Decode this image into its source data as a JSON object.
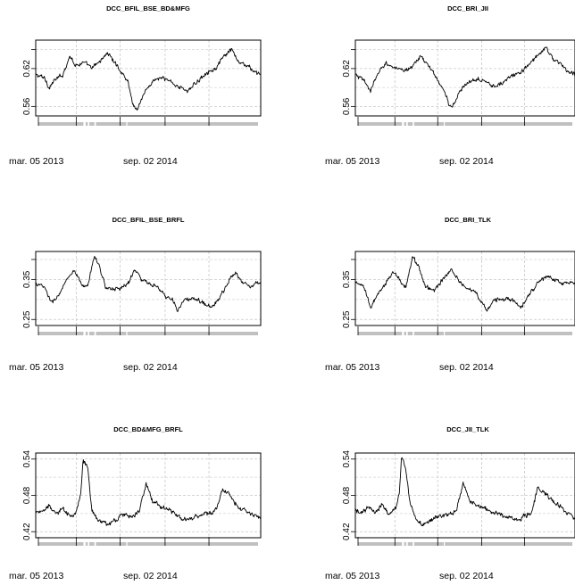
{
  "chart_data": [
    {
      "type": "line",
      "title": "DCC_BFIL_BSE_BD&MFG",
      "xlabel": "",
      "ylabel": "",
      "x_tick_labels": [
        "mar. 05 2013",
        "sep. 02 2014"
      ],
      "y_ticks": [
        0.56,
        0.62
      ],
      "y_tick_labels": [
        "0.56",
        "0.62"
      ],
      "ylim": [
        0.545,
        0.665
      ],
      "grid": true,
      "anchors": [
        [
          0,
          0.61
        ],
        [
          0.04,
          0.605
        ],
        [
          0.06,
          0.59
        ],
        [
          0.08,
          0.6
        ],
        [
          0.12,
          0.61
        ],
        [
          0.15,
          0.64
        ],
        [
          0.18,
          0.625
        ],
        [
          0.21,
          0.63
        ],
        [
          0.25,
          0.62
        ],
        [
          0.28,
          0.63
        ],
        [
          0.32,
          0.645
        ],
        [
          0.35,
          0.63
        ],
        [
          0.38,
          0.615
        ],
        [
          0.41,
          0.6
        ],
        [
          0.43,
          0.565
        ],
        [
          0.45,
          0.555
        ],
        [
          0.48,
          0.58
        ],
        [
          0.52,
          0.6
        ],
        [
          0.55,
          0.605
        ],
        [
          0.6,
          0.6
        ],
        [
          0.64,
          0.59
        ],
        [
          0.68,
          0.585
        ],
        [
          0.72,
          0.6
        ],
        [
          0.76,
          0.615
        ],
        [
          0.8,
          0.62
        ],
        [
          0.84,
          0.64
        ],
        [
          0.87,
          0.65
        ],
        [
          0.9,
          0.63
        ],
        [
          0.94,
          0.625
        ],
        [
          0.97,
          0.615
        ],
        [
          1,
          0.61
        ]
      ]
    },
    {
      "type": "line",
      "title": "DCC_BRI_JII",
      "xlabel": "",
      "ylabel": "",
      "x_tick_labels": [
        "mar. 05 2013",
        "sep. 02 2014"
      ],
      "y_ticks": [
        0.56,
        0.62
      ],
      "y_tick_labels": [
        "0.56",
        "0.62"
      ],
      "ylim": [
        0.545,
        0.665
      ],
      "grid": true,
      "anchors": [
        [
          0,
          0.61
        ],
        [
          0.04,
          0.6
        ],
        [
          0.07,
          0.585
        ],
        [
          0.1,
          0.61
        ],
        [
          0.14,
          0.63
        ],
        [
          0.18,
          0.62
        ],
        [
          0.22,
          0.615
        ],
        [
          0.26,
          0.625
        ],
        [
          0.3,
          0.64
        ],
        [
          0.34,
          0.62
        ],
        [
          0.38,
          0.6
        ],
        [
          0.41,
          0.58
        ],
        [
          0.43,
          0.56
        ],
        [
          0.45,
          0.565
        ],
        [
          0.48,
          0.585
        ],
        [
          0.52,
          0.6
        ],
        [
          0.56,
          0.605
        ],
        [
          0.6,
          0.6
        ],
        [
          0.64,
          0.59
        ],
        [
          0.68,
          0.6
        ],
        [
          0.72,
          0.61
        ],
        [
          0.76,
          0.615
        ],
        [
          0.8,
          0.63
        ],
        [
          0.84,
          0.645
        ],
        [
          0.87,
          0.655
        ],
        [
          0.9,
          0.635
        ],
        [
          0.94,
          0.625
        ],
        [
          0.97,
          0.615
        ],
        [
          1,
          0.61
        ]
      ]
    },
    {
      "type": "line",
      "title": "DCC_BFIL_BSE_BRFL",
      "xlabel": "",
      "ylabel": "",
      "x_tick_labels": [
        "mar. 05 2013",
        "sep. 02 2014"
      ],
      "y_ticks": [
        0.25,
        0.35
      ],
      "y_tick_labels": [
        "0.25",
        "0.35"
      ],
      "ylim": [
        0.235,
        0.42
      ],
      "grid": true,
      "anchors": [
        [
          0,
          0.34
        ],
        [
          0.04,
          0.33
        ],
        [
          0.07,
          0.29
        ],
        [
          0.1,
          0.31
        ],
        [
          0.14,
          0.35
        ],
        [
          0.17,
          0.37
        ],
        [
          0.2,
          0.34
        ],
        [
          0.23,
          0.33
        ],
        [
          0.26,
          0.41
        ],
        [
          0.28,
          0.39
        ],
        [
          0.31,
          0.33
        ],
        [
          0.34,
          0.325
        ],
        [
          0.38,
          0.33
        ],
        [
          0.41,
          0.34
        ],
        [
          0.44,
          0.375
        ],
        [
          0.47,
          0.35
        ],
        [
          0.5,
          0.34
        ],
        [
          0.54,
          0.33
        ],
        [
          0.58,
          0.305
        ],
        [
          0.61,
          0.3
        ],
        [
          0.63,
          0.27
        ],
        [
          0.66,
          0.3
        ],
        [
          0.7,
          0.3
        ],
        [
          0.74,
          0.295
        ],
        [
          0.78,
          0.28
        ],
        [
          0.82,
          0.305
        ],
        [
          0.86,
          0.35
        ],
        [
          0.89,
          0.37
        ],
        [
          0.92,
          0.34
        ],
        [
          0.96,
          0.335
        ],
        [
          1,
          0.345
        ]
      ]
    },
    {
      "type": "line",
      "title": "DCC_BRI_TLK",
      "xlabel": "",
      "ylabel": "",
      "x_tick_labels": [
        "mar. 05 2013",
        "sep. 02 2014"
      ],
      "y_ticks": [
        0.25,
        0.35
      ],
      "y_tick_labels": [
        "0.25",
        "0.35"
      ],
      "ylim": [
        0.235,
        0.42
      ],
      "grid": true,
      "anchors": [
        [
          0,
          0.34
        ],
        [
          0.04,
          0.33
        ],
        [
          0.07,
          0.28
        ],
        [
          0.1,
          0.31
        ],
        [
          0.14,
          0.34
        ],
        [
          0.17,
          0.37
        ],
        [
          0.2,
          0.35
        ],
        [
          0.23,
          0.33
        ],
        [
          0.26,
          0.41
        ],
        [
          0.29,
          0.38
        ],
        [
          0.32,
          0.33
        ],
        [
          0.36,
          0.325
        ],
        [
          0.4,
          0.35
        ],
        [
          0.44,
          0.375
        ],
        [
          0.47,
          0.35
        ],
        [
          0.5,
          0.33
        ],
        [
          0.54,
          0.32
        ],
        [
          0.57,
          0.3
        ],
        [
          0.6,
          0.27
        ],
        [
          0.63,
          0.3
        ],
        [
          0.67,
          0.3
        ],
        [
          0.71,
          0.3
        ],
        [
          0.75,
          0.28
        ],
        [
          0.79,
          0.31
        ],
        [
          0.83,
          0.34
        ],
        [
          0.87,
          0.36
        ],
        [
          0.9,
          0.35
        ],
        [
          0.94,
          0.34
        ],
        [
          1,
          0.34
        ]
      ]
    },
    {
      "type": "line",
      "title": "DCC_BD&MFG_BRFL",
      "xlabel": "",
      "ylabel": "",
      "x_tick_labels": [
        "mar. 05 2013",
        "sep. 02 2014"
      ],
      "y_ticks": [
        0.42,
        0.48,
        0.54
      ],
      "y_tick_labels": [
        "0.42",
        "0.48",
        "0.54"
      ],
      "ylim": [
        0.41,
        0.55
      ],
      "grid": true,
      "anchors": [
        [
          0,
          0.455
        ],
        [
          0.03,
          0.45
        ],
        [
          0.06,
          0.465
        ],
        [
          0.09,
          0.45
        ],
        [
          0.12,
          0.46
        ],
        [
          0.14,
          0.45
        ],
        [
          0.16,
          0.445
        ],
        [
          0.18,
          0.45
        ],
        [
          0.2,
          0.48
        ],
        [
          0.21,
          0.54
        ],
        [
          0.23,
          0.525
        ],
        [
          0.25,
          0.455
        ],
        [
          0.28,
          0.44
        ],
        [
          0.32,
          0.43
        ],
        [
          0.36,
          0.44
        ],
        [
          0.4,
          0.45
        ],
        [
          0.43,
          0.445
        ],
        [
          0.46,
          0.455
        ],
        [
          0.49,
          0.5
        ],
        [
          0.52,
          0.47
        ],
        [
          0.56,
          0.46
        ],
        [
          0.6,
          0.455
        ],
        [
          0.64,
          0.445
        ],
        [
          0.68,
          0.44
        ],
        [
          0.72,
          0.445
        ],
        [
          0.76,
          0.45
        ],
        [
          0.8,
          0.455
        ],
        [
          0.83,
          0.49
        ],
        [
          0.86,
          0.48
        ],
        [
          0.9,
          0.46
        ],
        [
          0.94,
          0.455
        ],
        [
          1,
          0.44
        ]
      ]
    },
    {
      "type": "line",
      "title": "DCC_JII_TLK",
      "xlabel": "",
      "ylabel": "",
      "x_tick_labels": [
        "mar. 05 2013",
        "sep. 02 2014"
      ],
      "y_ticks": [
        0.42,
        0.48,
        0.54
      ],
      "y_tick_labels": [
        "0.42",
        "0.48",
        "0.54"
      ],
      "ylim": [
        0.41,
        0.55
      ],
      "grid": true,
      "anchors": [
        [
          0,
          0.455
        ],
        [
          0.03,
          0.45
        ],
        [
          0.06,
          0.46
        ],
        [
          0.09,
          0.45
        ],
        [
          0.12,
          0.465
        ],
        [
          0.15,
          0.45
        ],
        [
          0.18,
          0.455
        ],
        [
          0.2,
          0.48
        ],
        [
          0.21,
          0.545
        ],
        [
          0.23,
          0.52
        ],
        [
          0.25,
          0.465
        ],
        [
          0.28,
          0.44
        ],
        [
          0.31,
          0.43
        ],
        [
          0.35,
          0.44
        ],
        [
          0.39,
          0.445
        ],
        [
          0.43,
          0.45
        ],
        [
          0.46,
          0.455
        ],
        [
          0.49,
          0.5
        ],
        [
          0.52,
          0.47
        ],
        [
          0.56,
          0.465
        ],
        [
          0.6,
          0.455
        ],
        [
          0.64,
          0.45
        ],
        [
          0.68,
          0.445
        ],
        [
          0.72,
          0.44
        ],
        [
          0.76,
          0.445
        ],
        [
          0.8,
          0.45
        ],
        [
          0.83,
          0.495
        ],
        [
          0.86,
          0.485
        ],
        [
          0.9,
          0.47
        ],
        [
          0.94,
          0.46
        ],
        [
          1,
          0.44
        ]
      ]
    }
  ]
}
